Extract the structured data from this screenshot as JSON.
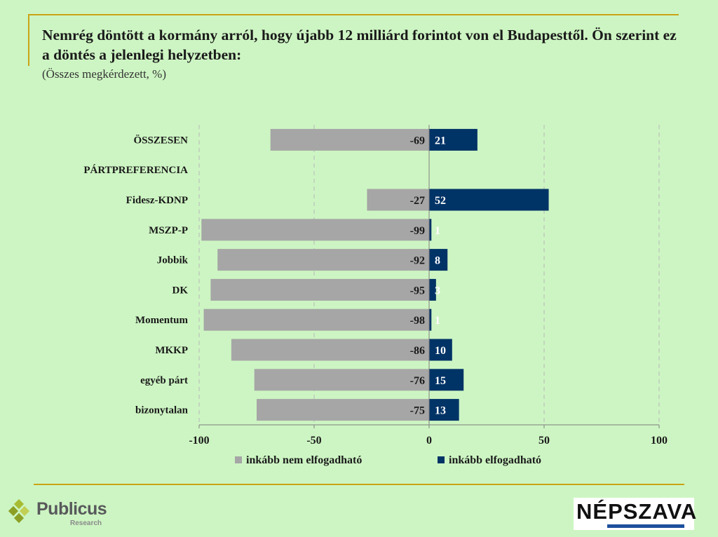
{
  "title": "Nemrég döntött a kormány arról, hogy újabb 12 milliárd forintot von el Budapesttől. Ön szerint ez a döntés a jelenlegi helyzetben:",
  "subtitle": "(Összes megkérdezett, %)",
  "logos": {
    "publicus_name": "Publicus",
    "publicus_sub": "Research",
    "nepszava_name": "NÉPSZAVA"
  },
  "colors": {
    "background": "#cdf5c3",
    "negative_bar": "#a6a6a6",
    "positive_bar": "#003366",
    "accent_rule": "#c8a415"
  },
  "chart_data": {
    "type": "bar",
    "orientation": "horizontal",
    "stacked": "diverging",
    "categories": [
      "ÖSSZESEN",
      "PÁRTPREFERENCIA",
      "Fidesz-KDNP",
      "MSZP-P",
      "Jobbik",
      "DK",
      "Momentum",
      "MKKP",
      "egyéb párt",
      "bizonytalan"
    ],
    "series": [
      {
        "name": "inkább nem elfogadható",
        "values": [
          -69,
          null,
          -27,
          -99,
          -92,
          -95,
          -98,
          -86,
          -76,
          -75
        ]
      },
      {
        "name": "inkább elfogadható",
        "values": [
          21,
          null,
          52,
          1,
          8,
          3,
          1,
          10,
          15,
          13
        ]
      }
    ],
    "xlim": [
      -100,
      100
    ],
    "xticks": [
      -100,
      -50,
      0,
      50,
      100
    ],
    "grid": true,
    "legend": "bottom"
  }
}
